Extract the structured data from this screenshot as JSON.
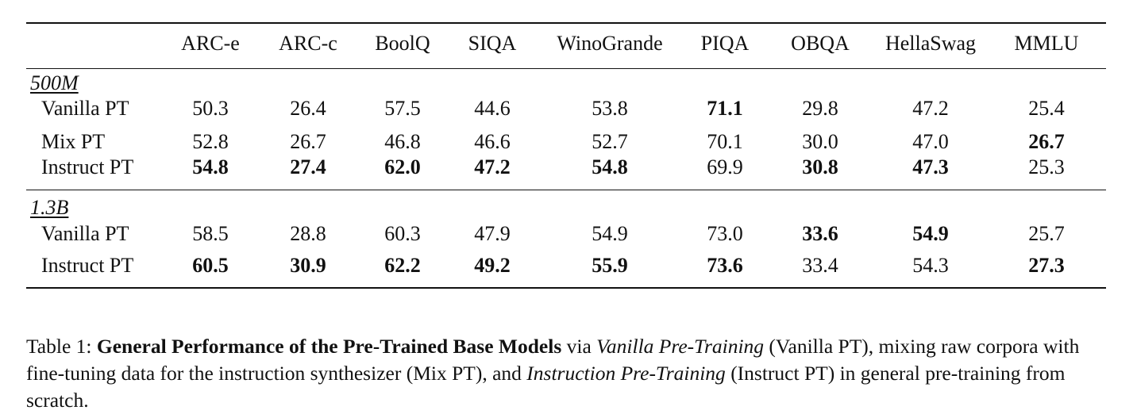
{
  "columns": [
    "ARC-e",
    "ARC-c",
    "BoolQ",
    "SIQA",
    "WinoGrande",
    "PIQA",
    "OBQA",
    "HellaSwag",
    "MMLU"
  ],
  "groups": [
    {
      "label": "500M",
      "rows": [
        {
          "name": "Vanilla PT",
          "values": [
            "50.3",
            "26.4",
            "57.5",
            "44.6",
            "53.8",
            "71.1",
            "29.8",
            "47.2",
            "25.4"
          ],
          "bold": [
            false,
            false,
            false,
            false,
            false,
            true,
            false,
            false,
            false
          ]
        },
        {
          "name": "Mix PT",
          "values": [
            "52.8",
            "26.7",
            "46.8",
            "46.6",
            "52.7",
            "70.1",
            "30.0",
            "47.0",
            "26.7"
          ],
          "bold": [
            false,
            false,
            false,
            false,
            false,
            false,
            false,
            false,
            true
          ]
        },
        {
          "name": "Instruct PT",
          "values": [
            "54.8",
            "27.4",
            "62.0",
            "47.2",
            "54.8",
            "69.9",
            "30.8",
            "47.3",
            "25.3"
          ],
          "bold": [
            true,
            true,
            true,
            true,
            true,
            false,
            true,
            true,
            false
          ]
        }
      ]
    },
    {
      "label": "1.3B",
      "rows": [
        {
          "name": "Vanilla PT",
          "values": [
            "58.5",
            "28.8",
            "60.3",
            "47.9",
            "54.9",
            "73.0",
            "33.6",
            "54.9",
            "25.7"
          ],
          "bold": [
            false,
            false,
            false,
            false,
            false,
            false,
            true,
            true,
            false
          ]
        },
        {
          "name": "Instruct PT",
          "values": [
            "60.5",
            "30.9",
            "62.2",
            "49.2",
            "55.9",
            "73.6",
            "33.4",
            "54.3",
            "27.3"
          ],
          "bold": [
            true,
            true,
            true,
            true,
            true,
            true,
            false,
            false,
            true
          ]
        }
      ]
    }
  ],
  "caption": {
    "prefix": "Table 1: ",
    "bold_title": "General Performance of the Pre-Trained Base Models",
    "t1": " via ",
    "i1": "Vanilla Pre-Training",
    "t2": " (Vanilla PT), mixing raw corpora with fine-tuning data for the instruction synthesizer (Mix PT), and ",
    "i2": "Instruction Pre-Training",
    "t3": " (Instruct PT) in general pre-training from scratch."
  }
}
